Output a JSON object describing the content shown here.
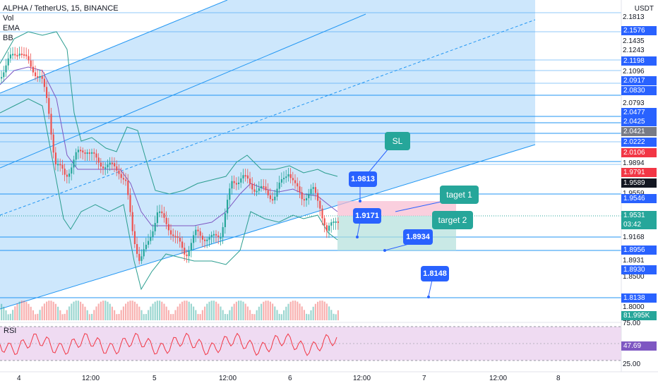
{
  "header": {
    "symbol": "ALPHA / TetherUS, 15, BINANCE",
    "indicators": [
      "Vol",
      "EMA",
      "BB"
    ]
  },
  "rsi": {
    "label": "RSI",
    "value": "47.69",
    "levels": [
      "75.00",
      "25.00"
    ]
  },
  "price_axis": {
    "currency": "USDT",
    "plain_labels": [
      "2.1813",
      "2.1435",
      "2.1243",
      "2.1096",
      "2.0793",
      "1.9894",
      "1.9559",
      "1.9168",
      "1.8931",
      "1.8500",
      "1.8000"
    ],
    "tags": [
      {
        "text": "2.1576",
        "color": "#2962ff"
      },
      {
        "text": "2.1198",
        "color": "#2962ff"
      },
      {
        "text": "2.0917",
        "color": "#2962ff"
      },
      {
        "text": "2.0830",
        "color": "#2962ff"
      },
      {
        "text": "2.0477",
        "color": "#2962ff"
      },
      {
        "text": "2.0425",
        "color": "#2962ff"
      },
      {
        "text": "2.0421",
        "color": "#787b86"
      },
      {
        "text": "2.0222",
        "color": "#2962ff"
      },
      {
        "text": "2.0106",
        "color": "#f23645"
      },
      {
        "text": "1.9791",
        "color": "#f23645"
      },
      {
        "text": "1.9589",
        "color": "#131722"
      },
      {
        "text": "1.9546",
        "color": "#2962ff"
      },
      {
        "text": "1.9531",
        "color": "#26a69a"
      },
      {
        "text": "03:42",
        "color": "#26a69a"
      },
      {
        "text": "1.8956",
        "color": "#2962ff"
      },
      {
        "text": "1.8930",
        "color": "#2962ff"
      },
      {
        "text": "1.8138",
        "color": "#2962ff"
      },
      {
        "text": "81.995K",
        "color": "#26a69a"
      },
      {
        "text": "47.69",
        "color": "#7e57c2"
      }
    ]
  },
  "time_axis": [
    "4",
    "12:00",
    "5",
    "12:00",
    "6",
    "12:00",
    "7",
    "12:00",
    "8"
  ],
  "annotations": [
    {
      "text": "SL",
      "color": "#26a69a"
    },
    {
      "text": "1.9813",
      "color": "#2962ff"
    },
    {
      "text": "taget 1",
      "color": "#26a69a"
    },
    {
      "text": "1.9171",
      "color": "#2962ff"
    },
    {
      "text": "target 2",
      "color": "#26a69a"
    },
    {
      "text": "1.8934",
      "color": "#2962ff"
    },
    {
      "text": "1.8148",
      "color": "#2962ff"
    }
  ],
  "colors": {
    "up": "#26a69a",
    "down": "#ef5350",
    "channel": "#2196f3",
    "bb": "#2a9d8f",
    "rsi": "#f23645"
  }
}
